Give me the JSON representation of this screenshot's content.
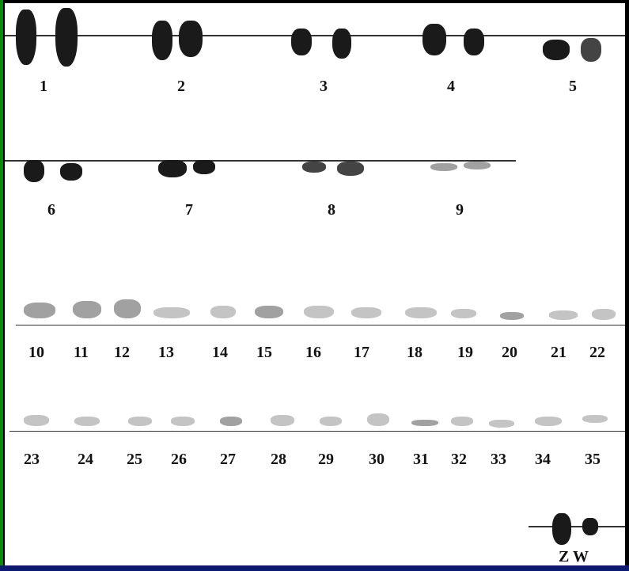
{
  "karyotype": {
    "row1_labels": [
      "1",
      "2",
      "3",
      "4",
      "5"
    ],
    "row2_labels": [
      "6",
      "7",
      "8",
      "9"
    ],
    "row3_labels": [
      "10",
      "11",
      "12",
      "13",
      "14",
      "15",
      "16",
      "17",
      "18",
      "19",
      "20",
      "21",
      "22"
    ],
    "row4_labels": [
      "23",
      "24",
      "25",
      "26",
      "27",
      "28",
      "29",
      "30",
      "31",
      "32",
      "33",
      "34",
      "35"
    ],
    "sex_label": "Z W"
  },
  "colors": {
    "frame_left": "#0a8a0a",
    "frame_bottom": "#0b1a6e",
    "panel": "#ffffff",
    "chromosome": "#1a1a1a"
  }
}
